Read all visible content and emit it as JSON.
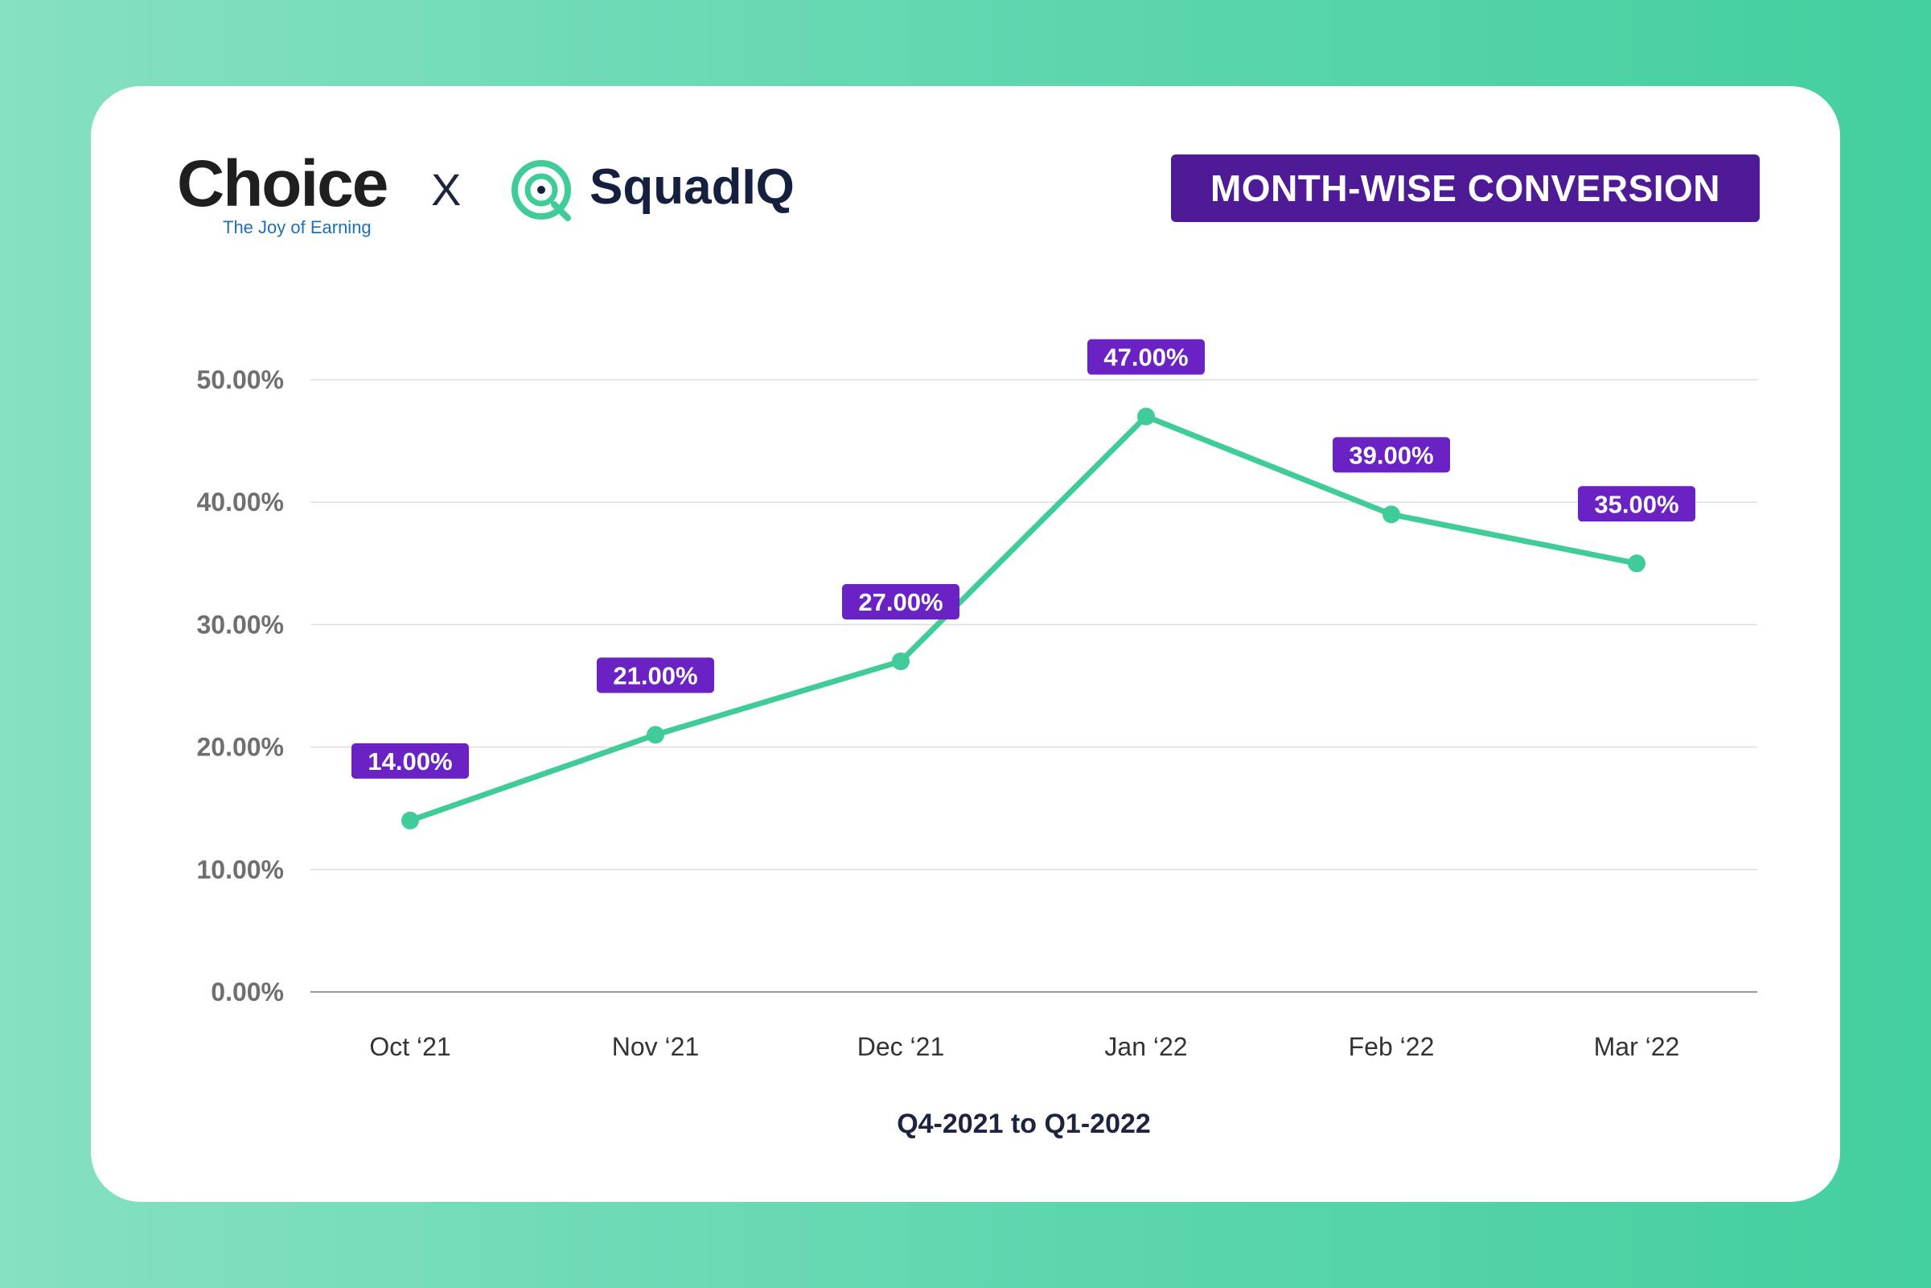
{
  "header": {
    "brand_left": "Choice",
    "brand_left_tagline": "The Joy of Earning",
    "separator": "X",
    "brand_right": "SquadIQ",
    "badge": "MONTH-WISE CONVERSION"
  },
  "colors": {
    "line": "#3fcc98",
    "label_bg": "#6a22c4",
    "badge_bg": "#4e1a96"
  },
  "chart_data": {
    "type": "line",
    "title": "MONTH-WISE CONVERSION",
    "categories": [
      "Oct ‘21",
      "Nov ‘21",
      "Dec ‘21",
      "Jan ‘22",
      "Feb ‘22",
      "Mar ‘22"
    ],
    "series": [
      {
        "name": "Conversion",
        "values": [
          14,
          21,
          27,
          47,
          39,
          35
        ]
      }
    ],
    "data_labels": [
      "14.00%",
      "21.00%",
      "27.00%",
      "47.00%",
      "39.00%",
      "35.00%"
    ],
    "yticks": [
      0,
      10,
      20,
      30,
      40,
      50
    ],
    "ytick_labels": [
      "0.00%",
      "10.00%",
      "20.00%",
      "30.00%",
      "40.00%",
      "50.00%"
    ],
    "ylim": [
      0,
      50
    ],
    "xlabel": "Q4-2021 to Q1-2022",
    "ylabel": "",
    "grid": true
  }
}
